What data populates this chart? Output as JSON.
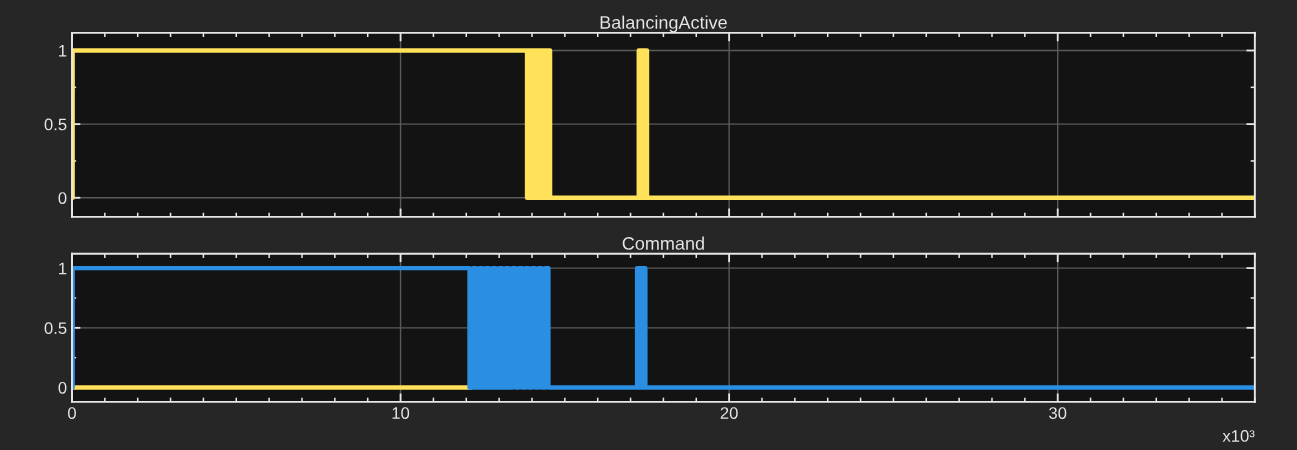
{
  "chart_data": [
    {
      "type": "step",
      "title": "BalancingActive",
      "xlim": [
        0,
        36
      ],
      "xticks": [
        0,
        10,
        20,
        30
      ],
      "ylim": [
        -0.13,
        1.12
      ],
      "yticks": [
        0,
        0.5,
        1
      ],
      "grid": true,
      "tick_labels": "y",
      "series": [
        {
          "color": "#ffe15a",
          "x": [
            0,
            0.02,
            13.85,
            13.9,
            13.95,
            14.0,
            14.05,
            14.1,
            14.15,
            14.2,
            14.25,
            14.3,
            14.35,
            14.4,
            14.45,
            14.5,
            14.55,
            17.25,
            17.3,
            17.35,
            17.4,
            17.45,
            17.5,
            36
          ],
          "values": [
            0,
            1,
            0,
            1,
            0,
            1,
            0,
            1,
            0,
            1,
            0,
            1,
            0,
            1,
            0,
            1,
            0,
            1,
            0,
            1,
            0,
            1,
            0,
            0
          ]
        }
      ]
    },
    {
      "type": "step",
      "title": "Command",
      "xlim": [
        0,
        36
      ],
      "xticks": [
        0,
        10,
        20,
        30
      ],
      "ylim": [
        -0.12,
        1.12
      ],
      "yticks": [
        0,
        0.5,
        1
      ],
      "grid": true,
      "annotations": [
        "x10³"
      ],
      "series": [
        {
          "color": "#ffe15a",
          "x": [
            0,
            12.1
          ],
          "values": [
            0,
            0
          ]
        },
        {
          "color": "#2a8ee2",
          "x": [
            0,
            0.02,
            12.1,
            12.2,
            12.3,
            12.4,
            12.5,
            12.6,
            12.7,
            12.8,
            12.9,
            13.0,
            13.1,
            13.2,
            13.3,
            13.4,
            13.5,
            13.6,
            13.7,
            13.8,
            13.9,
            14.0,
            14.1,
            14.2,
            14.3,
            14.4,
            14.5,
            17.2,
            17.25,
            17.3,
            17.35,
            17.4,
            17.45,
            36
          ],
          "values": [
            0,
            1,
            0,
            1,
            0,
            1,
            0,
            1,
            0,
            1,
            0,
            1,
            0,
            1,
            0,
            1,
            0,
            1,
            0,
            1,
            0,
            1,
            0,
            1,
            0,
            1,
            0,
            1,
            0,
            1,
            0,
            1,
            0,
            0
          ]
        }
      ]
    }
  ]
}
